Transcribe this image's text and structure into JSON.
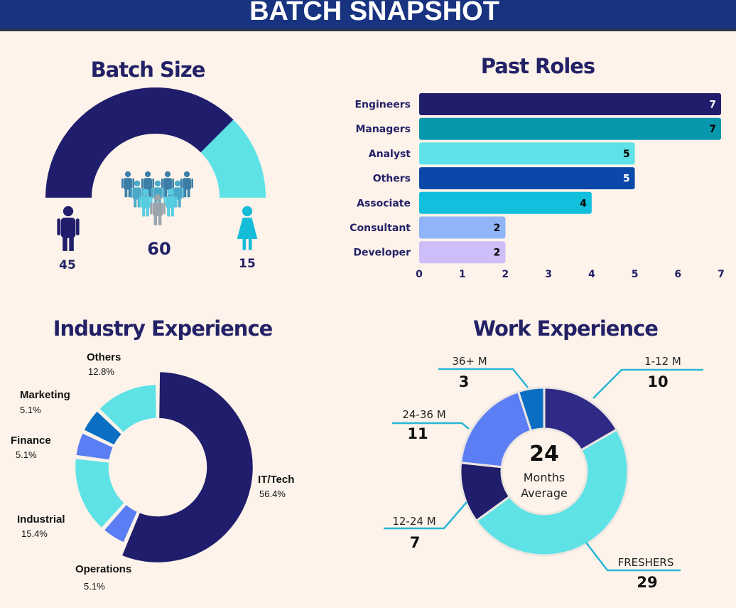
{
  "header": {
    "title": "BATCH SNAPSHOT"
  },
  "colors": {
    "header_bg": "#18337f",
    "background": "#fdf3ea",
    "navy": "#201d6c",
    "cyan": "#5ee2e6"
  },
  "chart_data": [
    {
      "type": "pie",
      "title": "Batch Size",
      "variant": "half-donut",
      "total": 60,
      "slices": [
        {
          "label": "male",
          "icon": "male-icon",
          "value": 45,
          "color": "#201d6c"
        },
        {
          "label": "female",
          "icon": "female-icon",
          "value": 15,
          "color": "#5ee2e6"
        }
      ],
      "total_icon": "people-group-icon"
    },
    {
      "type": "bar",
      "orientation": "horizontal",
      "title": "Past Roles",
      "categories": [
        "Engineers",
        "Managers",
        "Analyst",
        "Others",
        "Associate",
        "Consultant",
        "Developer"
      ],
      "values": [
        7,
        7,
        5,
        5,
        4,
        2,
        2
      ],
      "colors": [
        "#201d6c",
        "#0898ad",
        "#5ee2e8",
        "#0b48aa",
        "#12c0de",
        "#8fb5f8",
        "#cdbdf8"
      ],
      "xlim": [
        0,
        7
      ],
      "xticks": [
        "0",
        "1",
        "2",
        "3",
        "4",
        "5",
        "6",
        "7"
      ],
      "grid": false
    },
    {
      "type": "pie",
      "variant": "donut",
      "title": "Industry Experience",
      "slices": [
        {
          "label": "IT/Tech",
          "value": 56.4,
          "pct": "56.4%",
          "color": "#201d6c"
        },
        {
          "label": "Operations",
          "value": 5.1,
          "pct": "5.1%",
          "color": "#5b7ef4"
        },
        {
          "label": "Industrial",
          "value": 15.4,
          "pct": "15.4%",
          "color": "#5ee2e6"
        },
        {
          "label": "Finance",
          "value": 5.1,
          "pct": "5.1%",
          "color": "#5b7ef4"
        },
        {
          "label": "Marketing",
          "value": 5.1,
          "pct": "5.1%",
          "color": "#0a6fc2"
        },
        {
          "label": "Others",
          "value": 12.8,
          "pct": "12.8%",
          "color": "#5ee2e6"
        }
      ]
    },
    {
      "type": "pie",
      "variant": "donut",
      "title": "Work Experience",
      "center_value": "24",
      "center_label_1": "Months",
      "center_label_2": "Average",
      "slices": [
        {
          "label": "1-12 M",
          "value": 10,
          "color": "#2f2a86"
        },
        {
          "label": "FRESHERS",
          "value": 29,
          "color": "#5ee2e6"
        },
        {
          "label": "12-24 M",
          "value": 7,
          "color": "#201d6c"
        },
        {
          "label": "24-36 M",
          "value": 11,
          "color": "#5b7ef4"
        },
        {
          "label": "36+ M",
          "value": 3,
          "color": "#0a6fc2"
        }
      ],
      "leader_color": "#29b6d6"
    }
  ]
}
